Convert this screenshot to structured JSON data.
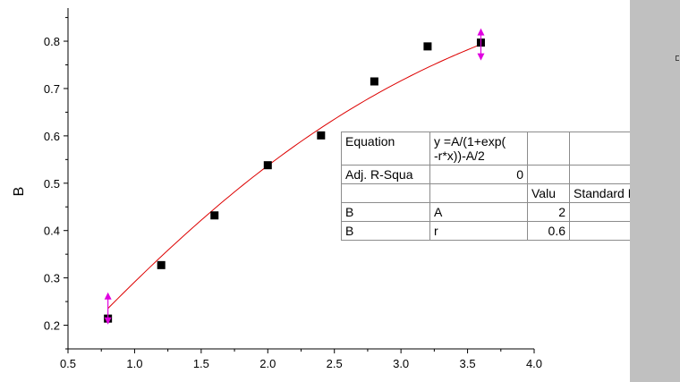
{
  "chart_data": {
    "type": "scatter",
    "xlabel": "",
    "ylabel": "B",
    "xlim": [
      0.5,
      4.0
    ],
    "ylim": [
      0.15,
      0.87
    ],
    "x_ticks": [
      "0.5",
      "1.0",
      "1.5",
      "2.0",
      "2.5",
      "3.0",
      "3.5",
      "4.0"
    ],
    "y_ticks": [
      "0.2",
      "0.3",
      "0.4",
      "0.5",
      "0.6",
      "0.7",
      "0.8"
    ],
    "grid": false,
    "series": [
      {
        "marker": "square",
        "color": "#000000",
        "points": [
          {
            "x": 0.8,
            "y": 0.214
          },
          {
            "x": 1.2,
            "y": 0.327
          },
          {
            "x": 1.6,
            "y": 0.432
          },
          {
            "x": 2.0,
            "y": 0.538
          },
          {
            "x": 2.4,
            "y": 0.601
          },
          {
            "x": 2.8,
            "y": 0.715
          },
          {
            "x": 3.2,
            "y": 0.789
          },
          {
            "x": 3.6,
            "y": 0.797
          }
        ]
      }
    ],
    "fit_curve": {
      "color": "#dd0000",
      "x_range": [
        0.8,
        3.6
      ],
      "A": 2,
      "r": 0.6
    },
    "range_handles": {
      "color": "#e000e0",
      "x": [
        0.8,
        3.6
      ]
    }
  },
  "fit_table": {
    "rows": [
      [
        "Equation",
        "y =A/(1+exp(\n-r*x))-A/2",
        "",
        ""
      ],
      [
        "Adj. R-Squa",
        "0",
        "",
        ""
      ],
      [
        "",
        "",
        "Valu",
        "Standard Err"
      ],
      [
        "B",
        "A",
        "2",
        "--"
      ],
      [
        "B",
        "r",
        "0.6",
        "--"
      ]
    ]
  }
}
